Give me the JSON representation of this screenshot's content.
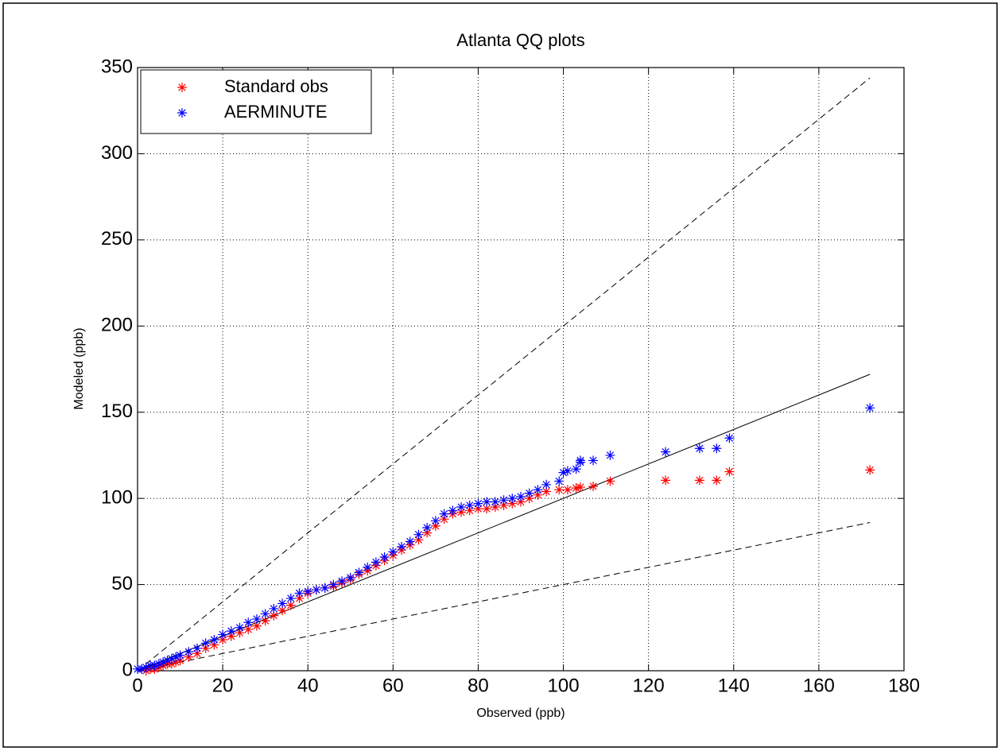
{
  "chart_data": {
    "type": "scatter",
    "title": "Atlanta QQ plots",
    "x_label": "Observed (ppb)",
    "y_label": "Modeled (ppb)",
    "xlim": [
      0,
      180
    ],
    "ylim": [
      0,
      350
    ],
    "xticks": [
      0,
      20,
      40,
      60,
      80,
      100,
      120,
      140,
      160,
      180
    ],
    "yticks": [
      0,
      50,
      100,
      150,
      200,
      250,
      300,
      350
    ],
    "grid": true,
    "legend": "upper-left",
    "series": [
      {
        "name": "Standard obs",
        "color": "#ff0000",
        "x": [
          2,
          3,
          4,
          5,
          6,
          7,
          8,
          9,
          10,
          12,
          14,
          16,
          18,
          20,
          22,
          24,
          26,
          28,
          30,
          32,
          34,
          36,
          38,
          40,
          42,
          44,
          46,
          48,
          50,
          52,
          54,
          56,
          58,
          60,
          62,
          64,
          66,
          68,
          70,
          72,
          74,
          76,
          78,
          80,
          82,
          84,
          86,
          88,
          90,
          92,
          94,
          96,
          99,
          101,
          103,
          104,
          107,
          111,
          124,
          132,
          136,
          139,
          172
        ],
        "values": [
          0,
          1,
          1,
          2,
          3,
          4,
          4,
          5,
          6,
          8,
          10,
          13,
          15,
          18,
          20,
          22,
          24,
          26,
          29,
          32,
          35,
          38,
          42,
          45,
          47,
          48,
          49,
          51,
          53,
          56,
          58,
          61,
          64,
          67,
          70,
          73,
          76,
          80,
          84,
          88,
          91,
          92,
          93,
          94,
          94,
          95,
          96,
          97,
          98,
          100,
          102,
          104,
          105,
          105,
          106,
          106.5,
          107,
          110,
          110.5,
          110.5,
          110.5,
          115.5,
          116.5
        ]
      },
      {
        "name": "AERMINUTE",
        "color": "#0000ff",
        "x": [
          0,
          1,
          2,
          3,
          4,
          5,
          6,
          7,
          8,
          9,
          10,
          12,
          14,
          16,
          18,
          20,
          22,
          24,
          26,
          28,
          30,
          32,
          34,
          36,
          38,
          40,
          42,
          44,
          46,
          48,
          50,
          52,
          54,
          56,
          58,
          60,
          62,
          64,
          66,
          68,
          70,
          72,
          74,
          76,
          78,
          80,
          82,
          84,
          86,
          88,
          90,
          92,
          94,
          96,
          99,
          100,
          101,
          103,
          104,
          104,
          107,
          111,
          124,
          132,
          136,
          139,
          172
        ],
        "values": [
          1,
          1,
          2,
          3,
          3,
          4,
          5,
          6,
          7,
          8,
          9,
          11,
          13,
          16,
          18,
          21,
          23,
          25,
          28,
          30,
          33,
          36,
          39,
          42,
          45,
          46,
          47,
          48,
          50,
          52,
          54,
          57,
          60,
          63,
          66,
          69,
          72,
          75,
          79,
          83,
          87,
          91,
          93,
          95,
          96,
          97,
          98,
          98,
          99,
          100,
          101,
          103,
          105,
          108,
          110,
          115,
          116,
          117,
          121,
          122,
          122,
          125,
          127,
          129,
          129,
          135,
          152.5
        ]
      }
    ],
    "reference_lines": [
      {
        "x": [
          0,
          172
        ],
        "y": [
          0,
          172
        ],
        "dashed": false
      },
      {
        "x": [
          0,
          172
        ],
        "y": [
          0,
          344
        ],
        "dashed": true
      },
      {
        "x": [
          0,
          172
        ],
        "y": [
          0,
          86
        ],
        "dashed": true
      }
    ]
  }
}
